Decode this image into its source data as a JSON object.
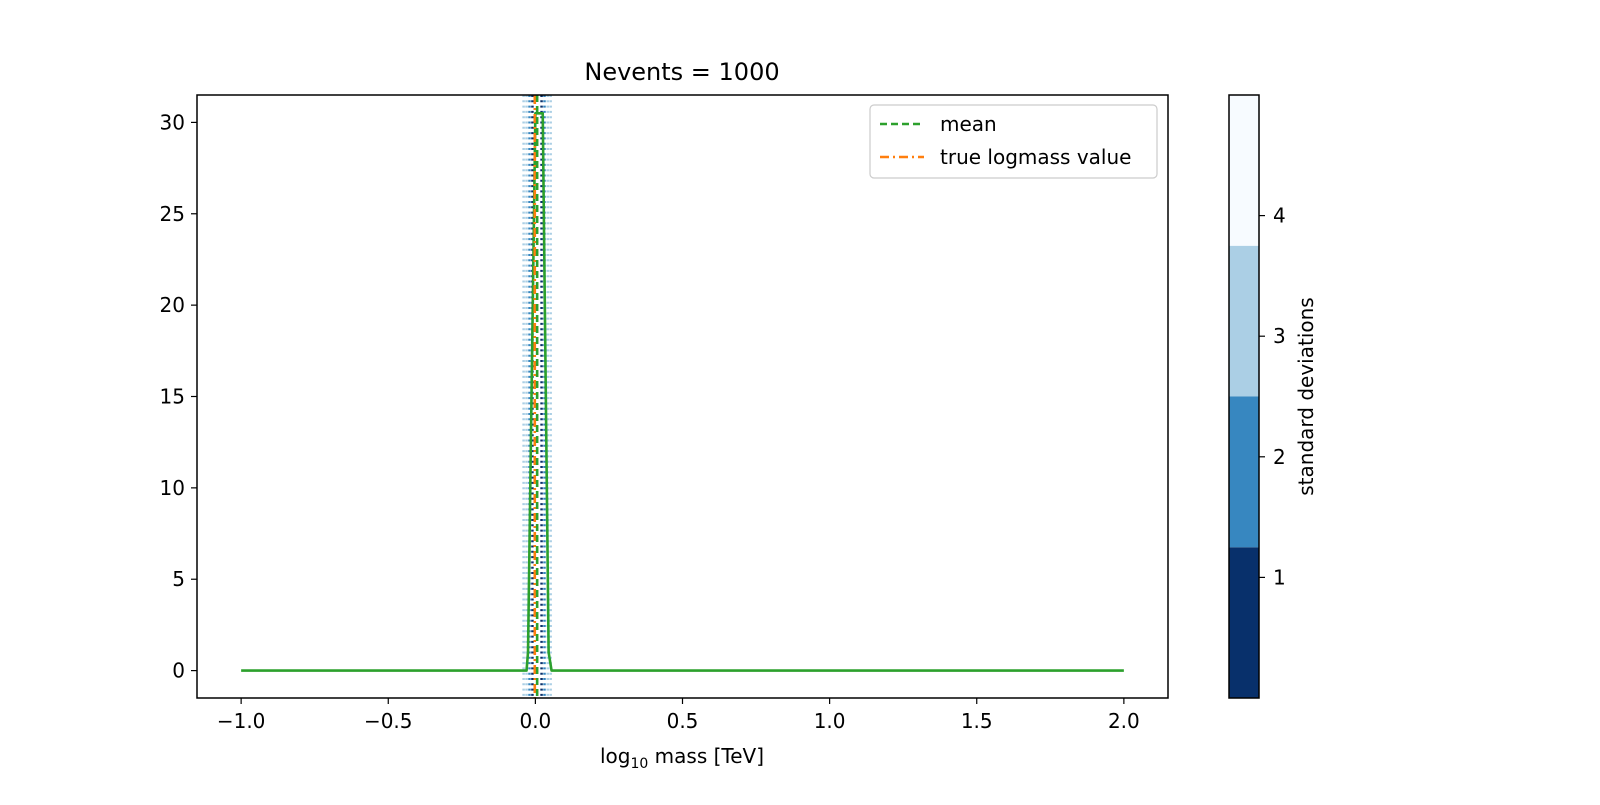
{
  "chart_data": {
    "type": "line",
    "title": "Nevents = 1000",
    "xlabel_prefix": "log",
    "xlabel_sub": "10",
    "xlabel_suffix": " mass [TeV]",
    "ylabel": "",
    "xlim": [
      -1.15,
      2.15
    ],
    "ylim": [
      -1.5,
      31.5
    ],
    "xticks": [
      -1.0,
      -0.5,
      0.0,
      0.5,
      1.0,
      1.5,
      2.0
    ],
    "xtick_labels": [
      "−1.0",
      "−0.5",
      "0.0",
      "0.5",
      "1.0",
      "1.5",
      "2.0"
    ],
    "yticks": [
      0,
      5,
      10,
      15,
      20,
      25,
      30
    ],
    "ytick_labels": [
      "0",
      "5",
      "10",
      "15",
      "20",
      "25",
      "30"
    ],
    "grid": false,
    "legend_position": "top-right",
    "legend": [
      {
        "label": "mean",
        "color": "#2ca02c",
        "style": "dashed"
      },
      {
        "label": "true logmass value",
        "color": "#ff7f0e",
        "style": "dashdot"
      }
    ],
    "series": [
      {
        "color": "#2ca02c",
        "x": [
          -1.0,
          -0.03,
          -0.025,
          0.0,
          0.025,
          0.045,
          0.055,
          2.0
        ],
        "y": [
          0,
          0,
          1,
          30.5,
          30.5,
          1,
          0,
          0
        ]
      }
    ],
    "mean_line": {
      "x": 0.006,
      "color": "#2ca02c"
    },
    "true_value_line": {
      "x": -0.002,
      "color": "#ff7f0e"
    },
    "std_lines": [
      {
        "x": -0.01,
        "sigma": 1,
        "color": "#08306b"
      },
      {
        "x": 0.021,
        "sigma": 1,
        "color": "#08306b"
      },
      {
        "x": -0.02,
        "sigma": 2,
        "color": "#3787c0"
      },
      {
        "x": 0.031,
        "sigma": 2,
        "color": "#3787c0"
      },
      {
        "x": -0.03,
        "sigma": 3,
        "color": "#abcfe5"
      },
      {
        "x": 0.042,
        "sigma": 3,
        "color": "#abcfe5"
      },
      {
        "x": -0.04,
        "sigma": 4,
        "color": "#abcfe5"
      },
      {
        "x": 0.052,
        "sigma": 4,
        "color": "#abcfe5"
      }
    ],
    "colorbar": {
      "label": "standard deviations",
      "range": [
        0,
        5
      ],
      "bands": [
        {
          "from": 0,
          "to": 1.25,
          "color": "#08306b"
        },
        {
          "from": 1.25,
          "to": 2.5,
          "color": "#3787c0"
        },
        {
          "from": 2.5,
          "to": 3.75,
          "color": "#abcfe5"
        },
        {
          "from": 3.75,
          "to": 5,
          "color": "#f7fbff"
        }
      ],
      "ticks": [
        1,
        2,
        3,
        4
      ],
      "tick_labels": [
        "1",
        "2",
        "3",
        "4"
      ]
    }
  }
}
